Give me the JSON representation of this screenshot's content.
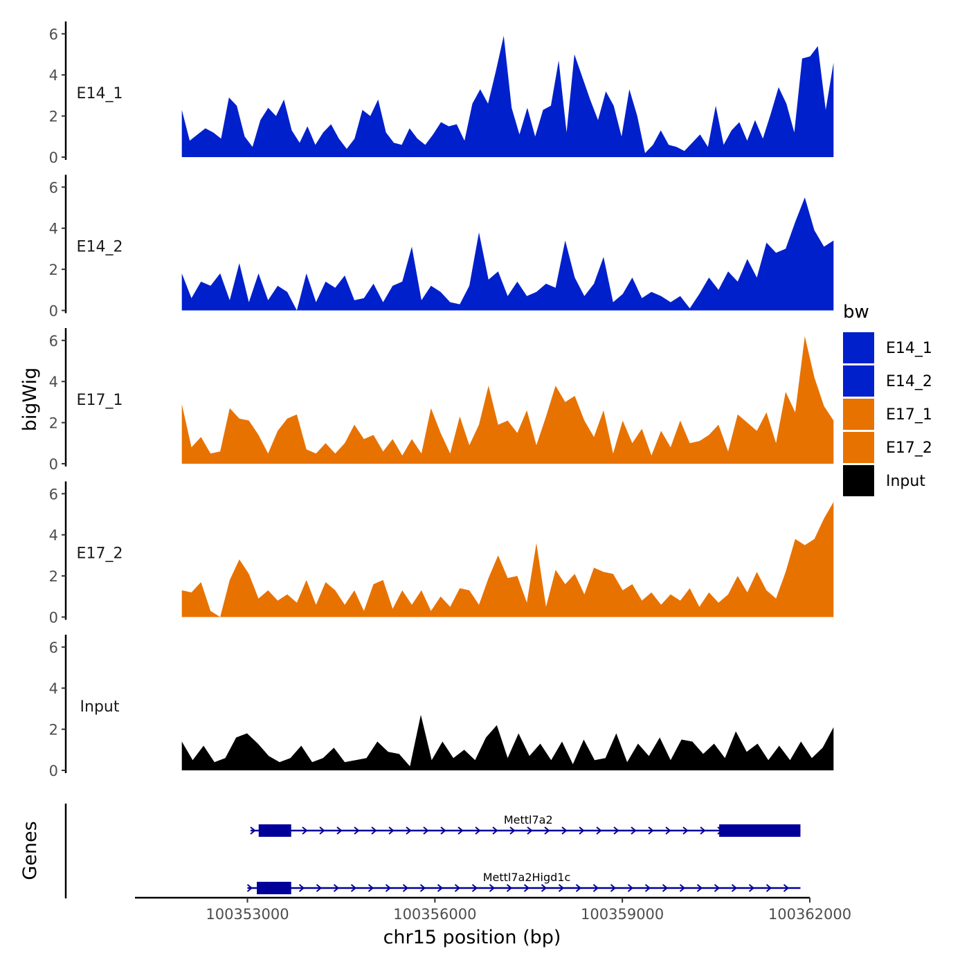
{
  "chart_data": {
    "type": "area",
    "ylabel": "bigWig",
    "xlabel": "chr15 position (bp)",
    "genes_label": "Genes",
    "xlim": [
      100351200,
      100362000
    ],
    "x_ticks": [
      100353000,
      100356000,
      100359000,
      100362000
    ],
    "x_tick_labels": [
      "100353000",
      "100356000",
      "100359000",
      "100362000"
    ],
    "ylim": [
      0,
      6.6
    ],
    "y_ticks": [
      0,
      2,
      4,
      6
    ],
    "y_tick_labels": [
      "0",
      "2",
      "4",
      "6"
    ],
    "legend": {
      "title": "bw",
      "entries": [
        {
          "label": "E14_1",
          "color": "#0020CC"
        },
        {
          "label": "E14_2",
          "color": "#0020CC"
        },
        {
          "label": "E17_1",
          "color": "#E87200"
        },
        {
          "label": "E17_2",
          "color": "#E87200"
        },
        {
          "label": "Input",
          "color": "#000000"
        }
      ]
    },
    "signal_x_start": 100351950,
    "signal_x_end": 100362380,
    "tracks": [
      {
        "name": "E14_1",
        "color": "#0020CC",
        "values": [
          2.3,
          0.8,
          1.1,
          1.4,
          1.2,
          0.9,
          2.9,
          2.5,
          1.0,
          0.5,
          1.8,
          2.4,
          2.0,
          2.8,
          1.3,
          0.7,
          1.5,
          0.6,
          1.2,
          1.6,
          0.9,
          0.4,
          0.9,
          2.3,
          2.0,
          2.8,
          1.2,
          0.7,
          0.6,
          1.4,
          0.9,
          0.6,
          1.1,
          1.7,
          1.5,
          1.6,
          0.8,
          2.6,
          3.3,
          2.6,
          4.2,
          5.9,
          2.4,
          1.1,
          2.4,
          1.0,
          2.3,
          2.5,
          4.7,
          1.2,
          5.0,
          3.9,
          2.8,
          1.8,
          3.2,
          2.5,
          1.0,
          3.3,
          2.0,
          0.2,
          0.6,
          1.3,
          0.6,
          0.5,
          0.3,
          0.7,
          1.1,
          0.5,
          2.5,
          0.6,
          1.3,
          1.7,
          0.8,
          1.8,
          0.9,
          2.1,
          3.4,
          2.6,
          1.2,
          4.8,
          4.9,
          5.4,
          2.3,
          4.6
        ]
      },
      {
        "name": "E14_2",
        "color": "#0020CC",
        "values": [
          1.8,
          0.6,
          1.4,
          1.2,
          1.8,
          0.5,
          2.3,
          0.4,
          1.8,
          0.5,
          1.2,
          0.9,
          0.0,
          1.8,
          0.4,
          1.4,
          1.1,
          1.7,
          0.5,
          0.6,
          1.3,
          0.4,
          1.2,
          1.4,
          3.1,
          0.5,
          1.2,
          0.9,
          0.4,
          0.3,
          1.2,
          3.8,
          1.5,
          1.9,
          0.7,
          1.4,
          0.7,
          0.9,
          1.3,
          1.1,
          3.4,
          1.6,
          0.7,
          1.3,
          2.6,
          0.4,
          0.8,
          1.6,
          0.6,
          0.9,
          0.7,
          0.4,
          0.7,
          0.1,
          0.8,
          1.6,
          1.0,
          1.9,
          1.4,
          2.5,
          1.6,
          3.3,
          2.8,
          3.0,
          4.3,
          5.5,
          3.9,
          3.1,
          3.4
        ]
      },
      {
        "name": "E17_1",
        "color": "#E87200",
        "values": [
          2.9,
          0.8,
          1.3,
          0.5,
          0.6,
          2.7,
          2.2,
          2.1,
          1.4,
          0.5,
          1.6,
          2.2,
          2.4,
          0.7,
          0.5,
          1.0,
          0.5,
          1.0,
          1.9,
          1.2,
          1.4,
          0.6,
          1.2,
          0.4,
          1.2,
          0.5,
          2.7,
          1.5,
          0.5,
          2.3,
          0.9,
          1.9,
          3.8,
          1.9,
          2.1,
          1.5,
          2.6,
          0.9,
          2.3,
          3.8,
          3.0,
          3.3,
          2.1,
          1.3,
          2.6,
          0.5,
          2.1,
          1.0,
          1.7,
          0.4,
          1.6,
          0.8,
          2.1,
          1.0,
          1.1,
          1.4,
          1.9,
          0.6,
          2.4,
          2.0,
          1.6,
          2.5,
          1.0,
          3.5,
          2.5,
          6.2,
          4.2,
          2.8,
          2.1
        ]
      },
      {
        "name": "E17_2",
        "color": "#E87200",
        "values": [
          1.3,
          1.2,
          1.7,
          0.3,
          0.0,
          1.8,
          2.8,
          2.1,
          0.9,
          1.3,
          0.8,
          1.1,
          0.7,
          1.8,
          0.6,
          1.7,
          1.3,
          0.6,
          1.3,
          0.3,
          1.6,
          1.8,
          0.4,
          1.3,
          0.6,
          1.3,
          0.3,
          1.0,
          0.5,
          1.4,
          1.3,
          0.6,
          1.9,
          3.0,
          1.9,
          2.0,
          0.7,
          3.6,
          0.5,
          2.3,
          1.6,
          2.1,
          1.1,
          2.4,
          2.2,
          2.1,
          1.3,
          1.6,
          0.8,
          1.2,
          0.6,
          1.1,
          0.8,
          1.4,
          0.5,
          1.2,
          0.7,
          1.1,
          2.0,
          1.2,
          2.2,
          1.3,
          0.9,
          2.2,
          3.8,
          3.5,
          3.8,
          4.8,
          5.6
        ]
      },
      {
        "name": "Input",
        "color": "#000000",
        "values": [
          1.4,
          0.5,
          1.2,
          0.4,
          0.6,
          1.6,
          1.8,
          1.3,
          0.7,
          0.4,
          0.6,
          1.2,
          0.4,
          0.6,
          1.1,
          0.4,
          0.5,
          0.6,
          1.4,
          0.9,
          0.8,
          0.2,
          2.7,
          0.5,
          1.4,
          0.6,
          1.0,
          0.5,
          1.6,
          2.2,
          0.6,
          1.8,
          0.7,
          1.3,
          0.5,
          1.4,
          0.3,
          1.5,
          0.5,
          0.6,
          1.8,
          0.4,
          1.3,
          0.7,
          1.6,
          0.5,
          1.5,
          1.4,
          0.8,
          1.3,
          0.6,
          1.9,
          0.9,
          1.3,
          0.5,
          1.2,
          0.5,
          1.4,
          0.6,
          1.1,
          2.1
        ]
      }
    ],
    "genes": [
      {
        "name": "Mettl7a2",
        "start": 100353050,
        "end": 100361850,
        "strand": "+",
        "exons": [
          [
            100353180,
            100353700
          ],
          [
            100360550,
            100361850
          ]
        ]
      },
      {
        "name": "Mettl7a2Higd1c",
        "start": 100353000,
        "end": 100361850,
        "strand": "+",
        "exons": [
          [
            100353150,
            100353700
          ]
        ]
      }
    ]
  }
}
